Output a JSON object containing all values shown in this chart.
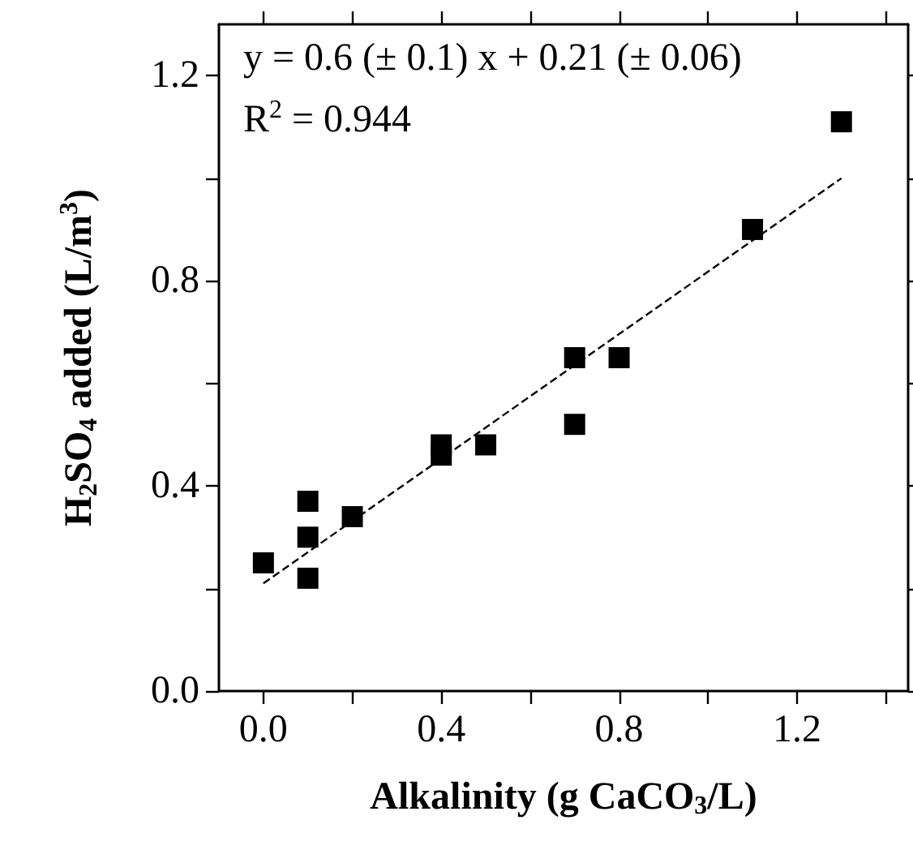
{
  "chart_data": {
    "type": "scatter",
    "xlabel": "Alkalinity (g CaCO$_{3}$/L)",
    "ylabel": "H$_{2}$SO$_{4}$ added (L/m$^{3}$)",
    "annotations": [
      "y = 0.6 (± 0.1) x + 0.21 (± 0.06)",
      "R$^{2}$ = 0.944"
    ],
    "xlim": [
      -0.1,
      1.45
    ],
    "xticks": [
      {
        "value": 0,
        "label": "0.0"
      },
      {
        "value": 0.2,
        "label": null
      },
      0.4,
      {
        "value": 0.6,
        "label": null
      },
      0.8,
      {
        "value": 1.0,
        "label": null
      },
      1.2,
      {
        "value": 1.4,
        "label": null
      }
    ],
    "ylim": [
      0,
      1.3
    ],
    "yticks": [
      {
        "value": 0,
        "label": "0.0"
      },
      {
        "value": 0.2,
        "label": null
      },
      0.4,
      {
        "value": 0.6,
        "label": null
      },
      0.8,
      {
        "value": 1.0,
        "label": null
      },
      1.2
    ],
    "grid": false,
    "series": [
      {
        "color": "#000000",
        "marker": "square",
        "x": [
          0,
          0.1,
          0.1,
          0.1,
          0.2,
          0.4,
          0.4,
          0.5,
          0.7,
          0.8,
          0.7,
          1.1,
          1.3
        ],
        "values": [
          0.25,
          0.37,
          0.3,
          0.22,
          0.34,
          0.48,
          0.46,
          0.48,
          0.65,
          0.65,
          0.52,
          0.9,
          1.11
        ]
      },
      {
        "type": "line",
        "color": "#000000",
        "marker": "none",
        "line_style": "dashed",
        "x": [
          0,
          1.3
        ],
        "values": [
          0.21,
          1.0
        ]
      }
    ]
  }
}
